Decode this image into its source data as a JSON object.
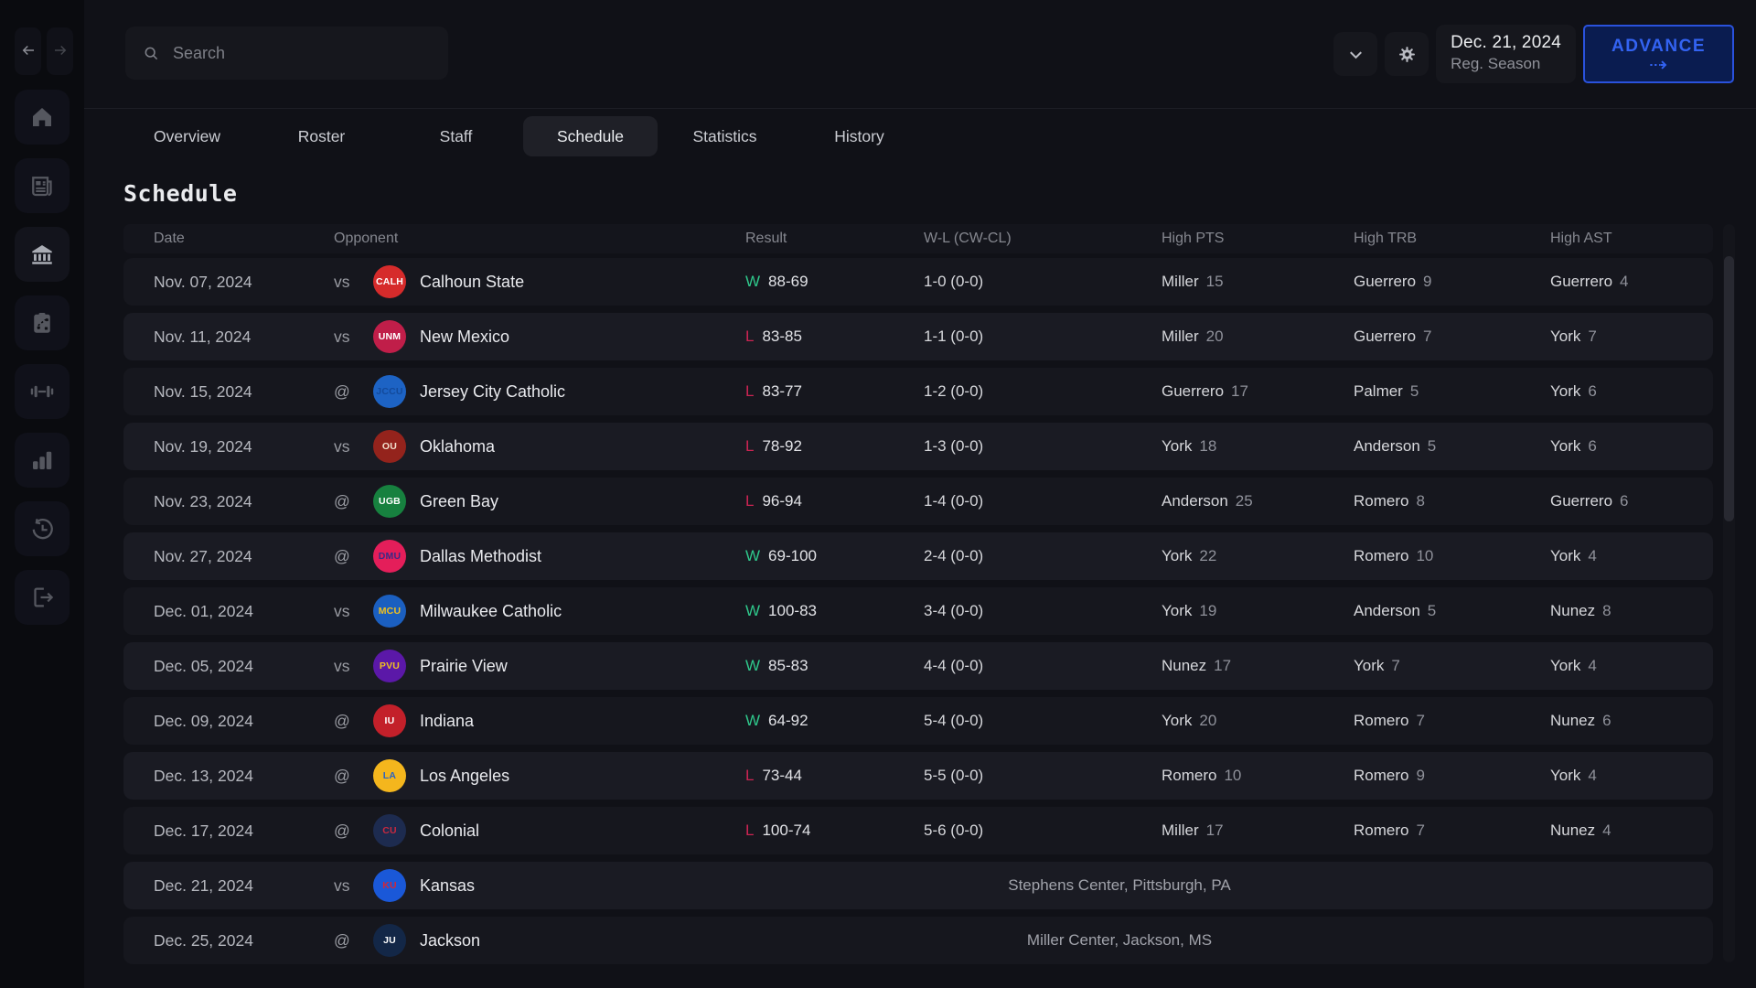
{
  "theme": {
    "accent_blue": "#3363f2",
    "win_green": "#2fc98c",
    "loss_red": "#cd2453"
  },
  "topbar": {
    "search_placeholder": "Search",
    "date": "Dec. 21, 2024",
    "phase": "Reg. Season",
    "advance_label": "ADVANCE"
  },
  "sidebar": {
    "nav": [
      {
        "id": "back",
        "icon": "arrow-left"
      },
      {
        "id": "forward",
        "icon": "arrow-right"
      }
    ],
    "items": [
      {
        "id": "home",
        "icon": "home",
        "active": false
      },
      {
        "id": "news",
        "icon": "news",
        "active": false
      },
      {
        "id": "team",
        "icon": "bank",
        "active": true
      },
      {
        "id": "tactics",
        "icon": "tactics",
        "active": false
      },
      {
        "id": "training",
        "icon": "dumbbell",
        "active": false
      },
      {
        "id": "stats",
        "icon": "bar-chart",
        "active": false
      },
      {
        "id": "history",
        "icon": "history-clock",
        "active": false
      },
      {
        "id": "exit",
        "icon": "exit",
        "active": false
      }
    ]
  },
  "tabs": [
    {
      "label": "Overview",
      "active": false
    },
    {
      "label": "Roster",
      "active": false
    },
    {
      "label": "Staff",
      "active": false
    },
    {
      "label": "Schedule",
      "active": true
    },
    {
      "label": "Statistics",
      "active": false
    },
    {
      "label": "History",
      "active": false
    }
  ],
  "page": {
    "title": "Schedule"
  },
  "table": {
    "columns": [
      "Date",
      "Opponent",
      "Result",
      "W-L (CW-CL)",
      "High PTS",
      "High TRB",
      "High AST"
    ],
    "rows": [
      {
        "date": "Nov. 07, 2024",
        "loc": "vs",
        "abbr": "CALH",
        "logo_bg": "#d62b2b",
        "logo_fg": "#ffffff",
        "name": "Calhoun State",
        "outcome": "W",
        "score": "88-69",
        "record": "1-0 (0-0)",
        "pts": [
          "Miller",
          "15"
        ],
        "trb": [
          "Guerrero",
          "9"
        ],
        "ast": [
          "Guerrero",
          "4"
        ]
      },
      {
        "date": "Nov. 11, 2024",
        "loc": "vs",
        "abbr": "UNM",
        "logo_bg": "#c01e49",
        "logo_fg": "#ffffff",
        "name": "New Mexico",
        "outcome": "L",
        "score": "83-85",
        "record": "1-1 (0-0)",
        "pts": [
          "Miller",
          "20"
        ],
        "trb": [
          "Guerrero",
          "7"
        ],
        "ast": [
          "York",
          "7"
        ]
      },
      {
        "date": "Nov. 15, 2024",
        "loc": "@",
        "abbr": "JCCU",
        "logo_bg": "#1d63c4",
        "logo_fg": "#134a9b",
        "name": "Jersey City Catholic",
        "outcome": "L",
        "score": "83-77",
        "record": "1-2 (0-0)",
        "pts": [
          "Guerrero",
          "17"
        ],
        "trb": [
          "Palmer",
          "5"
        ],
        "ast": [
          "York",
          "6"
        ]
      },
      {
        "date": "Nov. 19, 2024",
        "loc": "vs",
        "abbr": "OU",
        "logo_bg": "#94231c",
        "logo_fg": "#f3e2cf",
        "name": "Oklahoma",
        "outcome": "L",
        "score": "78-92",
        "record": "1-3 (0-0)",
        "pts": [
          "York",
          "18"
        ],
        "trb": [
          "Anderson",
          "5"
        ],
        "ast": [
          "York",
          "6"
        ]
      },
      {
        "date": "Nov. 23, 2024",
        "loc": "@",
        "abbr": "UGB",
        "logo_bg": "#17813f",
        "logo_fg": "#ffffff",
        "name": "Green Bay",
        "outcome": "L",
        "score": "96-94",
        "record": "1-4 (0-0)",
        "pts": [
          "Anderson",
          "25"
        ],
        "trb": [
          "Romero",
          "8"
        ],
        "ast": [
          "Guerrero",
          "6"
        ]
      },
      {
        "date": "Nov. 27, 2024",
        "loc": "@",
        "abbr": "DMU",
        "logo_bg": "#e41e5a",
        "logo_fg": "#3b2a86",
        "name": "Dallas Methodist",
        "outcome": "W",
        "score": "69-100",
        "record": "2-4 (0-0)",
        "pts": [
          "York",
          "22"
        ],
        "trb": [
          "Romero",
          "10"
        ],
        "ast": [
          "York",
          "4"
        ]
      },
      {
        "date": "Dec. 01, 2024",
        "loc": "vs",
        "abbr": "MCU",
        "logo_bg": "#1b5fc0",
        "logo_fg": "#f2c11c",
        "name": "Milwaukee Catholic",
        "outcome": "W",
        "score": "100-83",
        "record": "3-4 (0-0)",
        "pts": [
          "York",
          "19"
        ],
        "trb": [
          "Anderson",
          "5"
        ],
        "ast": [
          "Nunez",
          "8"
        ]
      },
      {
        "date": "Dec. 05, 2024",
        "loc": "vs",
        "abbr": "PVU",
        "logo_bg": "#5b18a8",
        "logo_fg": "#f0c020",
        "name": "Prairie View",
        "outcome": "W",
        "score": "85-83",
        "record": "4-4 (0-0)",
        "pts": [
          "Nunez",
          "17"
        ],
        "trb": [
          "York",
          "7"
        ],
        "ast": [
          "York",
          "4"
        ]
      },
      {
        "date": "Dec. 09, 2024",
        "loc": "@",
        "abbr": "IU",
        "logo_bg": "#c3202a",
        "logo_fg": "#ffffff",
        "name": "Indiana",
        "outcome": "W",
        "score": "64-92",
        "record": "5-4 (0-0)",
        "pts": [
          "York",
          "20"
        ],
        "trb": [
          "Romero",
          "7"
        ],
        "ast": [
          "Nunez",
          "6"
        ]
      },
      {
        "date": "Dec. 13, 2024",
        "loc": "@",
        "abbr": "LA",
        "logo_bg": "#f4b61d",
        "logo_fg": "#2a63c2",
        "name": "Los Angeles",
        "outcome": "L",
        "score": "73-44",
        "record": "5-5 (0-0)",
        "pts": [
          "Romero",
          "10"
        ],
        "trb": [
          "Romero",
          "9"
        ],
        "ast": [
          "York",
          "4"
        ]
      },
      {
        "date": "Dec. 17, 2024",
        "loc": "@",
        "abbr": "CU",
        "logo_bg": "#1d2b4f",
        "logo_fg": "#c8293f",
        "name": "Colonial",
        "outcome": "L",
        "score": "100-74",
        "record": "5-6 (0-0)",
        "pts": [
          "Miller",
          "17"
        ],
        "trb": [
          "Romero",
          "7"
        ],
        "ast": [
          "Nunez",
          "4"
        ]
      },
      {
        "date": "Dec. 21, 2024",
        "loc": "vs",
        "abbr": "KU",
        "logo_bg": "#1a58d8",
        "logo_fg": "#d22737",
        "name": "Kansas",
        "venue": "Stephens Center, Pittsburgh, PA"
      },
      {
        "date": "Dec. 25, 2024",
        "loc": "@",
        "abbr": "JU",
        "logo_bg": "#132747",
        "logo_fg": "#ffffff",
        "name": "Jackson",
        "venue": "Miller Center, Jackson, MS"
      }
    ]
  }
}
